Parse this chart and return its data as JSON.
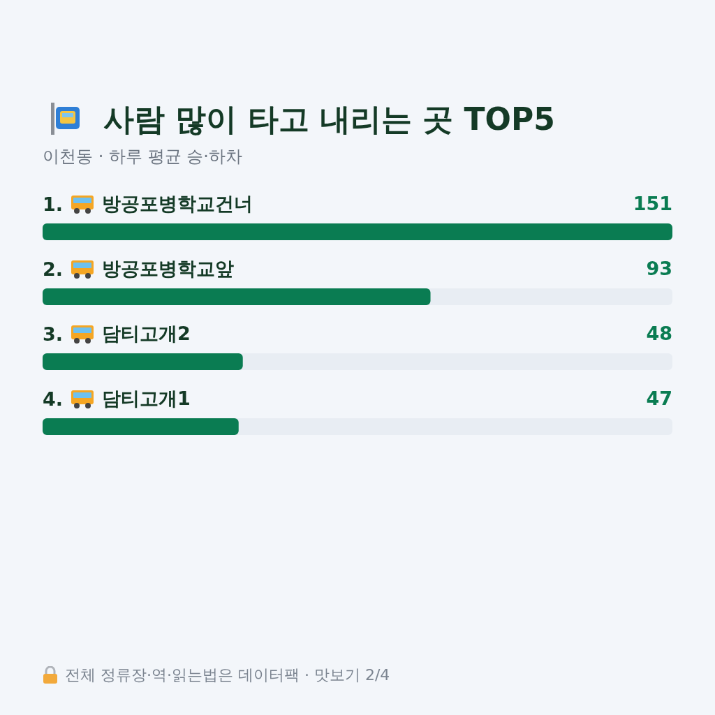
{
  "chart_data": {
    "type": "bar",
    "orientation": "horizontal",
    "title": "사람 많이 타고 내리는 곳 TOP5",
    "subtitle": "이천동 · 하루 평균 승·하차",
    "categories": [
      "1. 방공포병학교건너",
      "2. 방공포병학교앞",
      "3. 담티고개2",
      "4. 담티고개1"
    ],
    "values": [
      151,
      93,
      48,
      47
    ],
    "color": "#0a7c52",
    "data_labels": true,
    "annotations": [
      "전체 정류장·역·읽는법은 데이터팩 · 맛보기 2/4"
    ]
  }
}
